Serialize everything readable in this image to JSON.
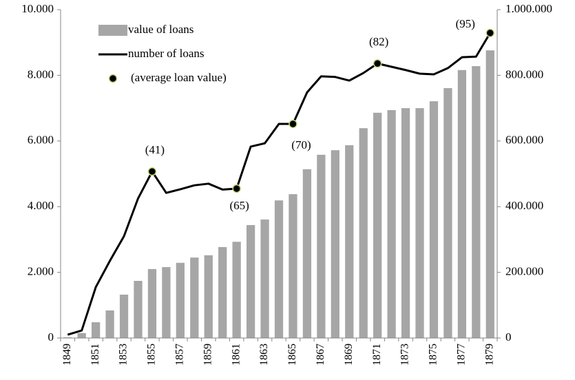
{
  "chart_data": {
    "type": "bar-line",
    "categories": [
      "1849",
      null,
      "1851",
      null,
      "1853",
      null,
      "1855",
      null,
      "1857",
      null,
      "1859",
      null,
      "1861",
      null,
      "1863",
      null,
      "1865",
      null,
      "1867",
      null,
      "1869",
      null,
      "1871",
      null,
      "1873",
      null,
      "1875",
      null,
      "1877",
      null,
      "1879"
    ],
    "series": [
      {
        "name": "value of loans",
        "type": "bar",
        "axis": "y2",
        "color": "#a6a6a6",
        "values": [
          2000,
          15000,
          48000,
          84000,
          132000,
          174000,
          210000,
          216000,
          229000,
          245000,
          252000,
          277000,
          293000,
          344000,
          361000,
          419000,
          438000,
          514000,
          558000,
          572000,
          587000,
          639000,
          686000,
          694000,
          700000,
          700000,
          721000,
          761000,
          816000,
          828000,
          876000
        ]
      },
      {
        "name": "number of loans",
        "type": "line",
        "axis": "y",
        "color": "#000000",
        "values": [
          100,
          230,
          1550,
          2350,
          3100,
          4250,
          5070,
          4420,
          4530,
          4650,
          4700,
          4520,
          4550,
          5830,
          5930,
          6520,
          6520,
          7480,
          7970,
          7950,
          7840,
          8070,
          8360,
          8260,
          8160,
          8050,
          8030,
          8220,
          8550,
          8570,
          9290
        ]
      },
      {
        "name": "(average loan value)",
        "type": "marker",
        "color": "#000000",
        "edge_color": "#c3d97a",
        "values": [
          null,
          null,
          null,
          null,
          null,
          null,
          41,
          null,
          null,
          null,
          null,
          null,
          65,
          null,
          null,
          null,
          70,
          null,
          null,
          null,
          null,
          null,
          82,
          null,
          null,
          null,
          null,
          null,
          null,
          null,
          95
        ],
        "value_labels": [
          null,
          null,
          null,
          null,
          null,
          null,
          "(41)",
          null,
          null,
          null,
          null,
          null,
          "(65)",
          null,
          null,
          null,
          "(70)",
          null,
          null,
          null,
          null,
          null,
          "(82)",
          null,
          null,
          null,
          null,
          null,
          null,
          null,
          "(95)"
        ]
      }
    ],
    "ylim": [
      0,
      10000
    ],
    "yticks": [
      0,
      {
        "value": 2000,
        "label": "2.000"
      },
      {
        "value": 4000,
        "label": "4.000"
      },
      {
        "value": 6000,
        "label": "6.000"
      },
      {
        "value": 8000,
        "label": "8.000"
      },
      {
        "value": 10000,
        "label": "10.000"
      }
    ],
    "y2lim": [
      0,
      1000000
    ],
    "y2ticks": [
      0,
      {
        "value": 200000,
        "label": "200.000"
      },
      {
        "value": 400000,
        "label": "400.000"
      },
      {
        "value": 600000,
        "label": "600.000"
      },
      {
        "value": 800000,
        "label": "800.000"
      },
      {
        "value": 1000000,
        "label": "1.000.000"
      }
    ],
    "legend": "upper left",
    "grid": false
  }
}
